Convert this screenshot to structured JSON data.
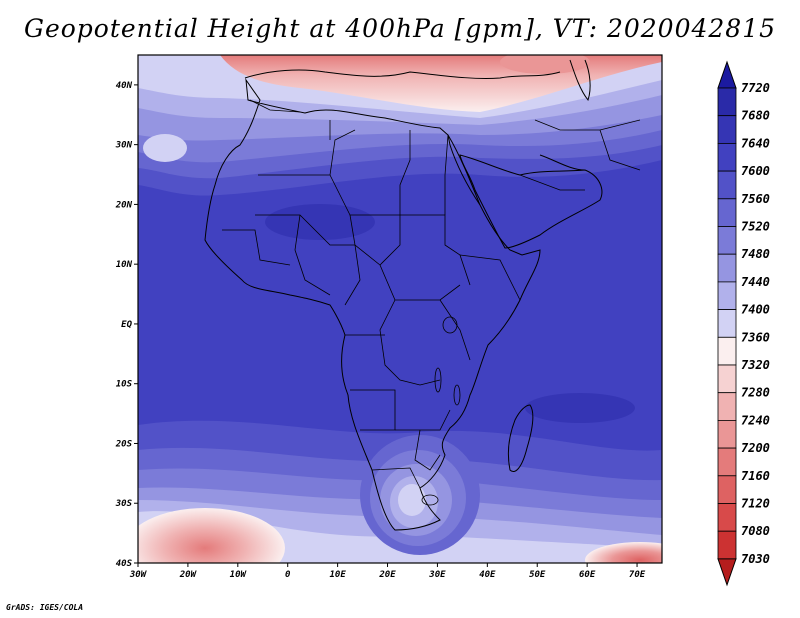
{
  "title": "Geopotential Height at 400hPa [gpm], VT: 2020042815",
  "footer": "GrADS: IGES/COLA",
  "map": {
    "projection": "latlon",
    "lon_range": [
      -30,
      75
    ],
    "lat_range": [
      -40,
      45
    ],
    "x_ticks": [
      {
        "lon": -30,
        "label": "30W"
      },
      {
        "lon": -20,
        "label": "20W"
      },
      {
        "lon": -10,
        "label": "10W"
      },
      {
        "lon": 0,
        "label": "0"
      },
      {
        "lon": 10,
        "label": "10E"
      },
      {
        "lon": 20,
        "label": "20E"
      },
      {
        "lon": 30,
        "label": "30E"
      },
      {
        "lon": 40,
        "label": "40E"
      },
      {
        "lon": 50,
        "label": "50E"
      },
      {
        "lon": 60,
        "label": "60E"
      },
      {
        "lon": 70,
        "label": "70E"
      }
    ],
    "y_ticks": [
      {
        "lat": 40,
        "label": "40N"
      },
      {
        "lat": 30,
        "label": "30N"
      },
      {
        "lat": 20,
        "label": "20N"
      },
      {
        "lat": 10,
        "label": "10N"
      },
      {
        "lat": 0,
        "label": "EQ"
      },
      {
        "lat": -10,
        "label": "10S"
      },
      {
        "lat": -20,
        "label": "20S"
      },
      {
        "lat": -30,
        "label": "30S"
      },
      {
        "lat": -40,
        "label": "40S"
      }
    ]
  },
  "colorbar": {
    "levels": [
      "7720",
      "7680",
      "7640",
      "7600",
      "7560",
      "7520",
      "7480",
      "7440",
      "7400",
      "7360",
      "7320",
      "7280",
      "7240",
      "7200",
      "7160",
      "7120",
      "7080",
      "7030"
    ],
    "colors": [
      "#1b1aa0",
      "#2a2aa8",
      "#3535b4",
      "#4141c0",
      "#5252c8",
      "#6666d0",
      "#7b7bd8",
      "#9595e1",
      "#b1b1eb",
      "#d2d2f4",
      "#fbefef",
      "#f6d2d2",
      "#f0b2b2",
      "#ea9696",
      "#e47b7b",
      "#de6262",
      "#d84a4a",
      "#cc3232",
      "#b51d1d"
    ]
  }
}
